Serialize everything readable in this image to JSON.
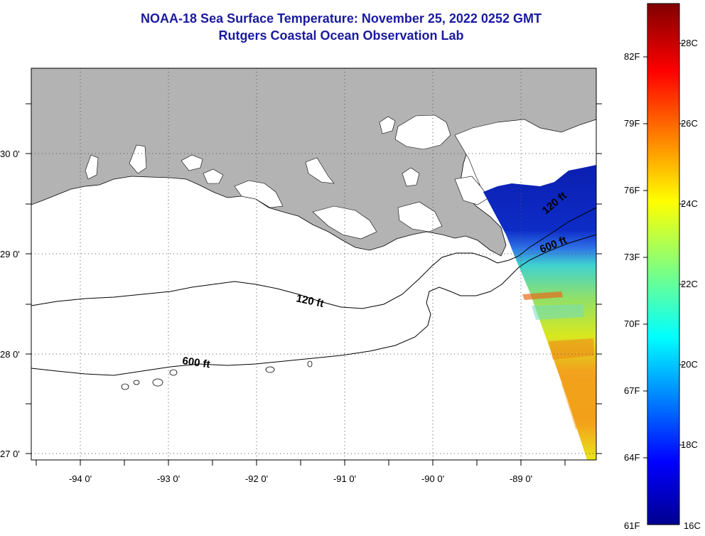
{
  "title": {
    "line1": "NOAA-18 Sea Surface Temperature:  November 25, 2022 0252 GMT",
    "line2": "Rutgers Coastal Ocean Observation Lab"
  },
  "map": {
    "lon_range": [
      -94.55,
      -88.15
    ],
    "lat_range": [
      26.95,
      30.85
    ],
    "lon_ticks": [
      "-94 0'",
      "-93 0'",
      "-92 0'",
      "-91 0'",
      "-90 0'",
      "-89 0'"
    ],
    "lat_ticks": [
      "30 0'",
      "29 0'",
      "28 0'",
      "27 0'"
    ],
    "land_color": "#b3b3b3",
    "grid": "dotted",
    "contours": [
      {
        "label": "120 ft"
      },
      {
        "label": "600 ft"
      }
    ],
    "swath_labels": [
      "120 ft",
      "600 ft"
    ]
  },
  "colorbar": {
    "fahrenheit_labels": [
      "82F",
      "79F",
      "76F",
      "73F",
      "70F",
      "67F",
      "64F",
      "61F"
    ],
    "celsius_labels": [
      "28C",
      "26C",
      "24C",
      "22C",
      "20C",
      "18C",
      "16C"
    ],
    "range_c": [
      16,
      29.5
    ],
    "colormap": "jet"
  }
}
